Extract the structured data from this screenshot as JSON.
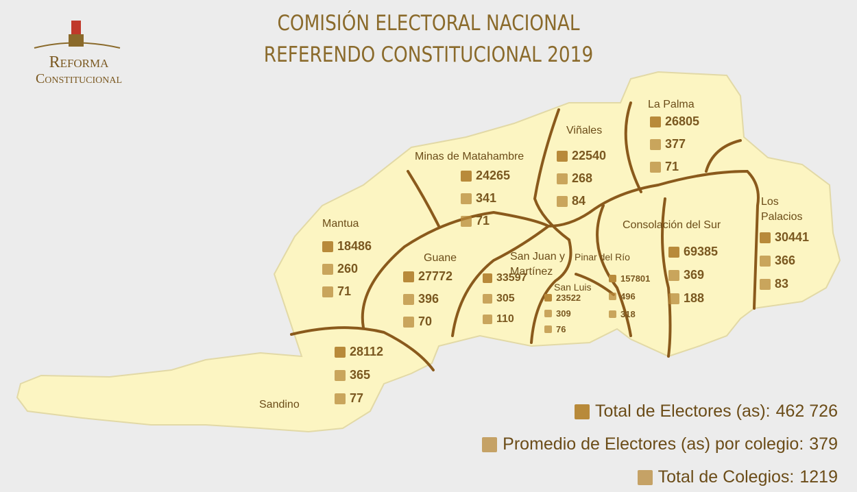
{
  "header": {
    "title": "COMISIÓN ELECTORAL NACIONAL",
    "subtitle": "REFERENDO CONSTITUCIONAL 2019",
    "logo_line1": "Reforma",
    "logo_line2": "Constitucional"
  },
  "municipalities": [
    {
      "name": "Minas de Matahambre",
      "electors": "24265",
      "average": "341",
      "colleges": "71"
    },
    {
      "name": "Viñales",
      "electors": "22540",
      "average": "268",
      "colleges": "84"
    },
    {
      "name": "La Palma",
      "electors": "26805",
      "average": "377",
      "colleges": "71"
    },
    {
      "name": "Mantua",
      "electors": "18486",
      "average": "260",
      "colleges": "71"
    },
    {
      "name": "Guane",
      "electors": "27772",
      "average": "396",
      "colleges": "70"
    },
    {
      "name": "San Juan y Martínez",
      "electors": "33597",
      "average": "305",
      "colleges": "110"
    },
    {
      "name": "Pinar del Río",
      "electors": "157801",
      "average": "496",
      "colleges": "318"
    },
    {
      "name": "San Luis",
      "electors": "23522",
      "average": "309",
      "colleges": "76"
    },
    {
      "name": "Consolación del Sur",
      "electors": "69385",
      "average": "369",
      "colleges": "188"
    },
    {
      "name": "Los Palacios",
      "electors": "30441",
      "average": "366",
      "colleges": "83"
    },
    {
      "name": "Sandino",
      "electors": "28112",
      "average": "365",
      "colleges": "77"
    }
  ],
  "totals": [
    {
      "label": "Total de Electores (as):",
      "value": "462 726"
    },
    {
      "label": "Promedio de Electores (as) por colegio:",
      "value": "379"
    },
    {
      "label": "Total de Colegios:",
      "value": "1219"
    }
  ]
}
